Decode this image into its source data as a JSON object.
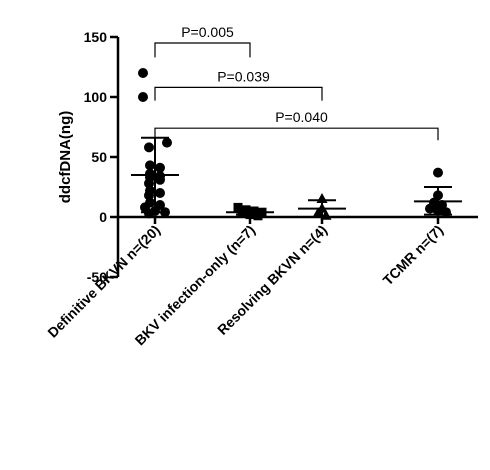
{
  "chart_data": {
    "type": "scatter",
    "ylabel": "ddcfDNA(ng)",
    "ylim": [
      -50,
      150
    ],
    "yticks": [
      -50,
      0,
      50,
      100,
      150
    ],
    "categories": [
      "Definitive BKVN n=(20)",
      "BKV infection-only (n=7)",
      "Resolving BKVN n=(4)",
      "TCMR n=(7)"
    ],
    "groups": [
      {
        "category": "Definitive BKVN n=(20)",
        "marker": "circle",
        "points": [
          120,
          100,
          62,
          58,
          43,
          41,
          36,
          34,
          33,
          31,
          28,
          22,
          20,
          18,
          12,
          10,
          8,
          5,
          4,
          3
        ],
        "mean": 35,
        "sd_upper": 66,
        "sd_lower": 4
      },
      {
        "category": "BKV infection-only (n=7)",
        "marker": "square",
        "points": [
          8,
          6,
          5,
          4,
          3,
          2,
          1
        ],
        "mean": 4,
        "sd_upper": 6,
        "sd_lower": 2
      },
      {
        "category": "Resolving BKVN n=(4)",
        "marker": "triangle",
        "points": [
          15,
          7,
          3,
          1
        ],
        "mean": 7,
        "sd_upper": 14,
        "sd_lower": 0
      },
      {
        "category": "TCMR n=(7)",
        "marker": "circle",
        "points": [
          37,
          18,
          12,
          10,
          7,
          5,
          4
        ],
        "mean": 13,
        "sd_upper": 25,
        "sd_lower": 2
      }
    ],
    "comparisons": [
      {
        "label": "P=0.005",
        "from": 0,
        "to": 1,
        "y": 145,
        "drop": 133
      },
      {
        "label": "P=0.039",
        "from": 0,
        "to": 2,
        "y": 108,
        "drop": 97
      },
      {
        "label": "P=0.040",
        "from": 0,
        "to": 3,
        "y": 74,
        "drop": 64
      }
    ]
  }
}
